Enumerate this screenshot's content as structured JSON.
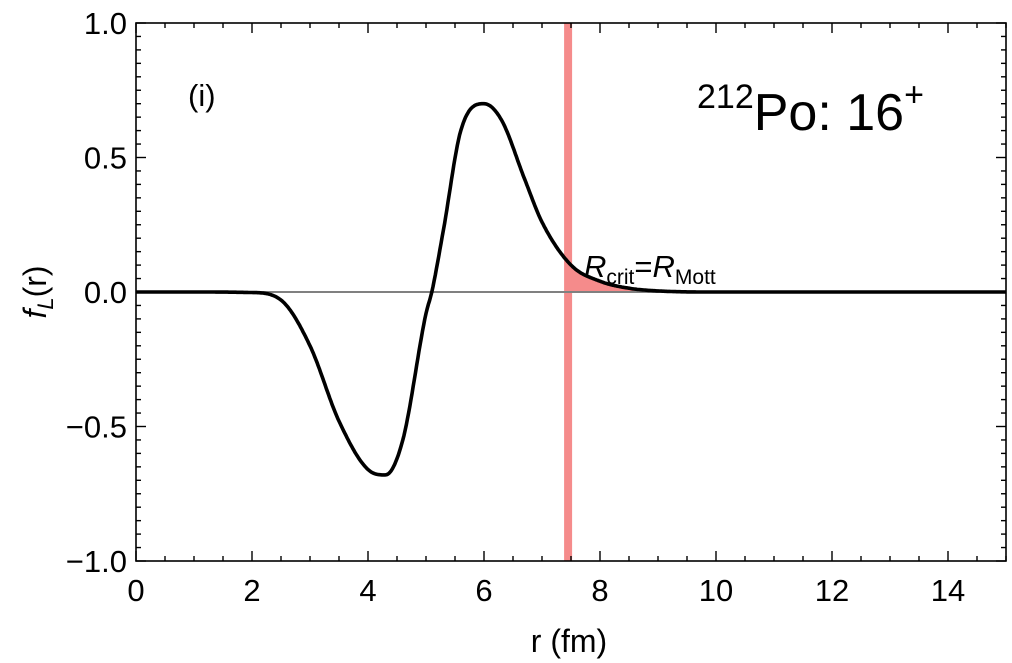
{
  "chart_data": {
    "type": "line",
    "panel_label": "(i)",
    "title_parts": {
      "mass": "212",
      "element": "Po: 16",
      "sup": "+"
    },
    "xlabel": "r (fm)",
    "ylabel": {
      "base": "f",
      "sub": "L",
      "rest": "(r)"
    },
    "xlim": [
      0,
      15
    ],
    "ylim": [
      -1.0,
      1.0
    ],
    "x_ticks": [
      "0",
      "2",
      "4",
      "6",
      "8",
      "10",
      "12",
      "14"
    ],
    "y_ticks": [
      "−1.0",
      "−0.5",
      "0.0",
      "0.5",
      "1.0"
    ],
    "grid": false,
    "series": [
      {
        "color": "#000000",
        "x": [
          0,
          1,
          2,
          2.5,
          3,
          3.5,
          4,
          4.3,
          4.6,
          5,
          5.1,
          5.3,
          5.6,
          6,
          6.3,
          6.7,
          7,
          7.5,
          8,
          8.5,
          9,
          10,
          12,
          15
        ],
        "y": [
          0,
          0,
          -0.002,
          -0.03,
          -0.2,
          -0.48,
          -0.66,
          -0.68,
          -0.55,
          -0.08,
          0.0,
          0.23,
          0.6,
          0.7,
          0.64,
          0.42,
          0.26,
          0.1,
          0.04,
          0.014,
          0.004,
          0.0,
          0.0,
          0.0
        ]
      }
    ],
    "zero_line": {
      "y": 0.0,
      "color": "#808080"
    },
    "vertical_band": {
      "x": 7.45,
      "color": "#f58b8b"
    },
    "shaded_region": {
      "x_from": 7.45,
      "color": "#f58b8b"
    },
    "annotation": {
      "R1": "R",
      "sub1": "crit",
      "eq": "=",
      "R2": "R",
      "sub2": "Mott",
      "x": 7.75,
      "y": 0.03
    }
  }
}
